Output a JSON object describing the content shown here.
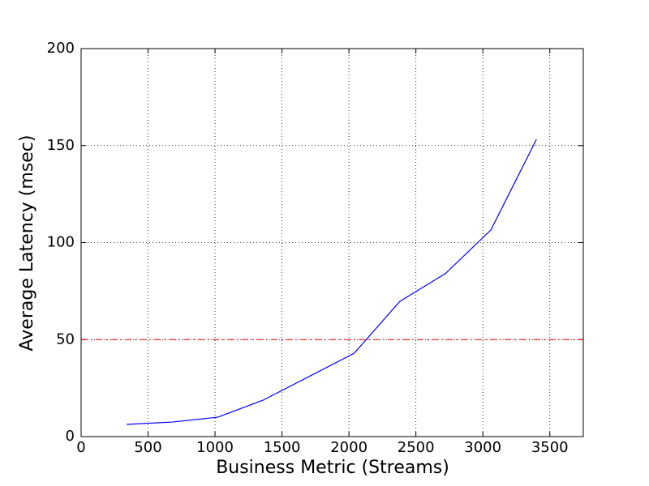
{
  "chart_data": {
    "type": "line",
    "xlabel": "Business Metric (Streams)",
    "ylabel": "Average Latency (msec)",
    "x": [
      340,
      680,
      1020,
      1360,
      2040,
      2380,
      2720,
      3060,
      3400
    ],
    "series": [
      {
        "color": "#0000ff",
        "values": [
          6.3,
          7.5,
          10,
          18.8,
          43,
          69.7,
          84,
          106.5,
          153.2
        ]
      }
    ],
    "xlim": [
      0,
      3750
    ],
    "xticks": [
      0,
      500,
      1000,
      1500,
      2000,
      2500,
      3000,
      3500
    ],
    "ylim": [
      0,
      200
    ],
    "yticks": [
      0,
      50,
      100,
      150,
      200
    ],
    "grid": true,
    "reference_line": {
      "value": 50,
      "color": "#ff0000"
    }
  }
}
